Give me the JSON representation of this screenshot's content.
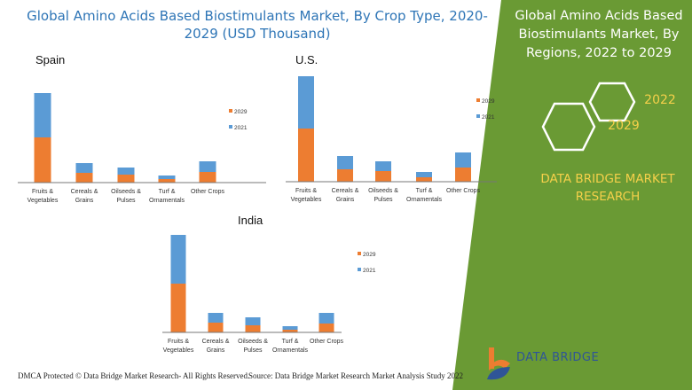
{
  "title": "Global Amino Acids Based Biostimulants Market, By Crop Type, 2020-2029 (USD Thousand)",
  "side_panel": {
    "title": "Global Amino Acids Based Biostimulants Market, By Regions, 2022 to 2029",
    "hex_labels": [
      "2022",
      "2029"
    ],
    "brand": "DATA BRIDGE MARKET RESEARCH",
    "logo_text": "DATA BRIDGE",
    "colors": {
      "green": "#6a9a34",
      "yellow": "#f5d04a"
    }
  },
  "footer": {
    "dmca": "DMCA Protected © Data Bridge Market Research- All Rights Reserved.",
    "source": "Source: Data Bridge Market Research Market Analysis Study 2022"
  },
  "chart_data": [
    {
      "type": "bar",
      "stacked": true,
      "title": "Spain",
      "categories": [
        "Fruits & Vegetables",
        "Cereals & Grains",
        "Oilseeds & Pulses",
        "Turf & Ornamentals",
        "Other Crops"
      ],
      "series": [
        {
          "name": "2029",
          "color": "#ed7d31",
          "values": [
            51,
            11,
            9,
            4,
            12
          ]
        },
        {
          "name": "2021",
          "color": "#5b9bd5",
          "values": [
            50,
            11,
            8,
            4,
            12
          ]
        }
      ],
      "legend": "right",
      "grid": false
    },
    {
      "type": "bar",
      "stacked": true,
      "title": "U.S.",
      "categories": [
        "Fruits & Vegetables",
        "Cereals & Grains",
        "Oilseeds & Pulses",
        "Turf & Ornamentals",
        "Other Crops"
      ],
      "series": [
        {
          "name": "2029",
          "color": "#ed7d31",
          "values": [
            60,
            14,
            12,
            5,
            16
          ]
        },
        {
          "name": "2021",
          "color": "#5b9bd5",
          "values": [
            59,
            15,
            11,
            6,
            17
          ]
        }
      ],
      "legend": "right",
      "grid": false
    },
    {
      "type": "bar",
      "stacked": true,
      "title": "India",
      "categories": [
        "Fruits & Vegetables",
        "Cereals & Grains",
        "Oilseeds & Pulses",
        "Turf & Ornamentals",
        "Other Crops"
      ],
      "series": [
        {
          "name": "2029",
          "color": "#ed7d31",
          "values": [
            55,
            11,
            8,
            3,
            10
          ]
        },
        {
          "name": "2021",
          "color": "#5b9bd5",
          "values": [
            55,
            11,
            9,
            4,
            12
          ]
        }
      ],
      "legend": "right",
      "grid": false
    }
  ]
}
